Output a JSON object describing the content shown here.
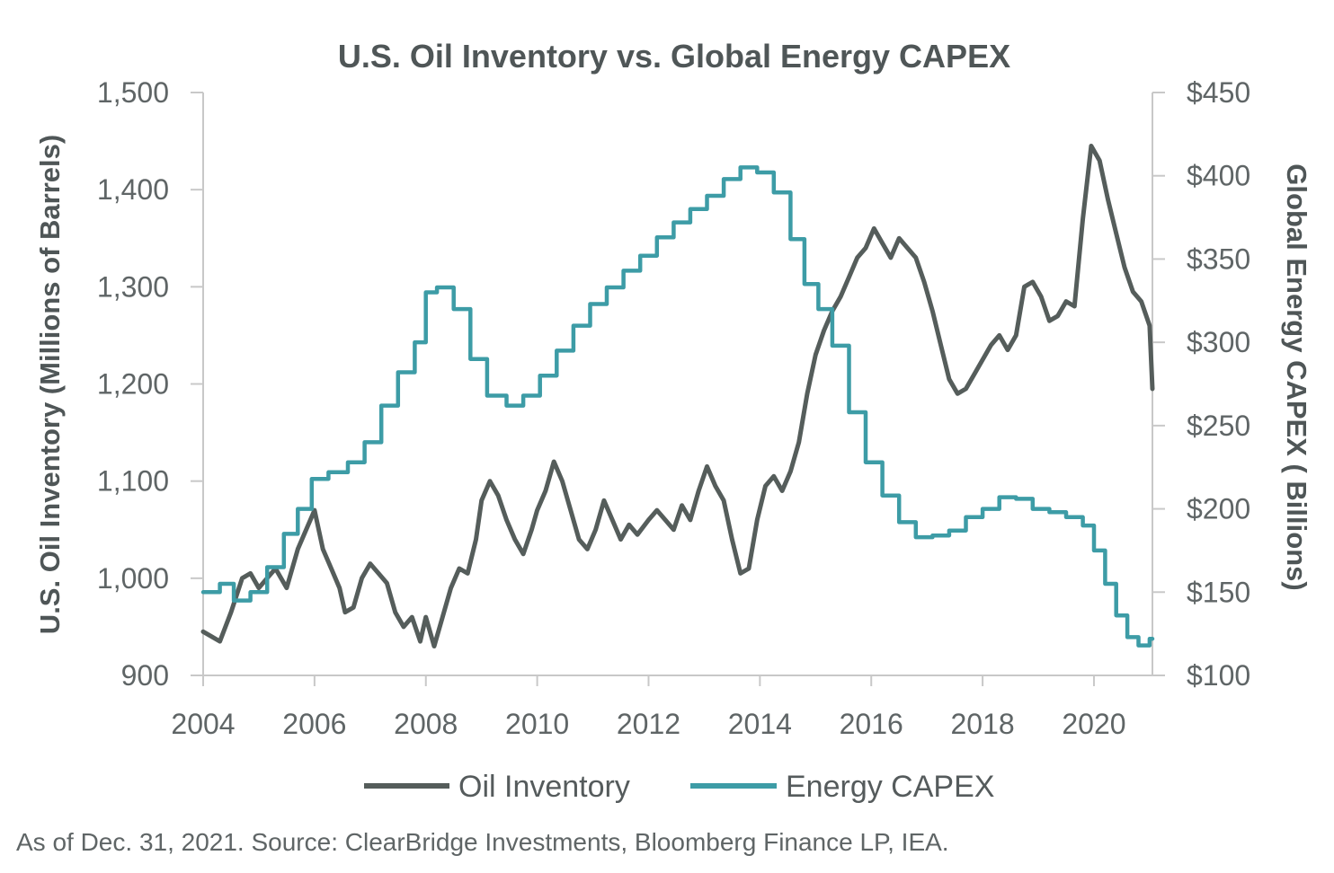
{
  "chart_data": {
    "type": "line",
    "title": "U.S. Oil Inventory vs. Global Energy CAPEX",
    "ylabel_left": "U.S. Oil Inventory (Millions of Barrels)",
    "ylabel_right": "Global Energy CAPEX ( Billions)",
    "xlim": [
      2004,
      2021.05
    ],
    "ylim_left": [
      900,
      1500
    ],
    "ylim_right": [
      100,
      450
    ],
    "x_ticks": [
      "2004",
      "2006",
      "2008",
      "2010",
      "2012",
      "2014",
      "2016",
      "2018",
      "2020"
    ],
    "y_ticks_left": [
      "1,500",
      "1,400",
      "1,300",
      "1,200",
      "1,100",
      "1,000",
      "900"
    ],
    "y_ticks_right": [
      "$450",
      "$400",
      "$350",
      "$300",
      "$250",
      "$200",
      "$150",
      "$100"
    ],
    "legend_position": "bottom",
    "grid": false,
    "colors": {
      "oil": "#555d5b",
      "capex": "#3d9ca6",
      "axis": "#c8c8c8"
    },
    "series": [
      {
        "name": "Oil Inventory",
        "axis": "left",
        "points": [
          [
            2004.0,
            945
          ],
          [
            2004.15,
            940
          ],
          [
            2004.3,
            935
          ],
          [
            2004.5,
            965
          ],
          [
            2004.7,
            1000
          ],
          [
            2004.85,
            1005
          ],
          [
            2005.0,
            990
          ],
          [
            2005.15,
            1000
          ],
          [
            2005.3,
            1010
          ],
          [
            2005.5,
            990
          ],
          [
            2005.7,
            1030
          ],
          [
            2005.85,
            1050
          ],
          [
            2006.0,
            1070
          ],
          [
            2006.15,
            1030
          ],
          [
            2006.3,
            1010
          ],
          [
            2006.45,
            990
          ],
          [
            2006.55,
            965
          ],
          [
            2006.7,
            970
          ],
          [
            2006.85,
            1000
          ],
          [
            2007.0,
            1015
          ],
          [
            2007.15,
            1005
          ],
          [
            2007.3,
            995
          ],
          [
            2007.45,
            965
          ],
          [
            2007.6,
            950
          ],
          [
            2007.75,
            960
          ],
          [
            2007.9,
            935
          ],
          [
            2008.0,
            960
          ],
          [
            2008.15,
            930
          ],
          [
            2008.3,
            960
          ],
          [
            2008.45,
            990
          ],
          [
            2008.6,
            1010
          ],
          [
            2008.75,
            1005
          ],
          [
            2008.9,
            1040
          ],
          [
            2009.0,
            1080
          ],
          [
            2009.15,
            1100
          ],
          [
            2009.3,
            1085
          ],
          [
            2009.45,
            1060
          ],
          [
            2009.6,
            1040
          ],
          [
            2009.75,
            1025
          ],
          [
            2009.9,
            1050
          ],
          [
            2010.0,
            1070
          ],
          [
            2010.15,
            1090
          ],
          [
            2010.3,
            1120
          ],
          [
            2010.45,
            1100
          ],
          [
            2010.6,
            1070
          ],
          [
            2010.75,
            1040
          ],
          [
            2010.9,
            1030
          ],
          [
            2011.05,
            1050
          ],
          [
            2011.2,
            1080
          ],
          [
            2011.35,
            1060
          ],
          [
            2011.5,
            1040
          ],
          [
            2011.65,
            1055
          ],
          [
            2011.8,
            1045
          ],
          [
            2012.0,
            1060
          ],
          [
            2012.15,
            1070
          ],
          [
            2012.3,
            1060
          ],
          [
            2012.45,
            1050
          ],
          [
            2012.6,
            1075
          ],
          [
            2012.75,
            1060
          ],
          [
            2012.9,
            1090
          ],
          [
            2013.05,
            1115
          ],
          [
            2013.2,
            1095
          ],
          [
            2013.35,
            1080
          ],
          [
            2013.5,
            1040
          ],
          [
            2013.65,
            1005
          ],
          [
            2013.8,
            1010
          ],
          [
            2013.95,
            1060
          ],
          [
            2014.1,
            1095
          ],
          [
            2014.25,
            1105
          ],
          [
            2014.4,
            1090
          ],
          [
            2014.55,
            1110
          ],
          [
            2014.7,
            1140
          ],
          [
            2014.85,
            1190
          ],
          [
            2015.0,
            1230
          ],
          [
            2015.15,
            1255
          ],
          [
            2015.3,
            1275
          ],
          [
            2015.45,
            1290
          ],
          [
            2015.6,
            1310
          ],
          [
            2015.75,
            1330
          ],
          [
            2015.9,
            1340
          ],
          [
            2016.05,
            1360
          ],
          [
            2016.2,
            1345
          ],
          [
            2016.35,
            1330
          ],
          [
            2016.5,
            1350
          ],
          [
            2016.65,
            1340
          ],
          [
            2016.8,
            1330
          ],
          [
            2016.95,
            1305
          ],
          [
            2017.1,
            1275
          ],
          [
            2017.25,
            1240
          ],
          [
            2017.4,
            1205
          ],
          [
            2017.55,
            1190
          ],
          [
            2017.7,
            1195
          ],
          [
            2017.85,
            1210
          ],
          [
            2018.0,
            1225
          ],
          [
            2018.15,
            1240
          ],
          [
            2018.3,
            1250
          ],
          [
            2018.45,
            1235
          ],
          [
            2018.6,
            1250
          ],
          [
            2018.75,
            1300
          ],
          [
            2018.9,
            1305
          ],
          [
            2019.05,
            1290
          ],
          [
            2019.2,
            1265
          ],
          [
            2019.35,
            1270
          ],
          [
            2019.5,
            1285
          ],
          [
            2019.65,
            1280
          ],
          [
            2019.8,
            1370
          ],
          [
            2019.95,
            1445
          ],
          [
            2020.1,
            1430
          ],
          [
            2020.25,
            1390
          ],
          [
            2020.4,
            1355
          ],
          [
            2020.55,
            1320
          ],
          [
            2020.7,
            1295
          ],
          [
            2020.85,
            1285
          ],
          [
            2021.0,
            1260
          ],
          [
            2021.05,
            1195
          ]
        ]
      },
      {
        "name": "Energy CAPEX",
        "axis": "right",
        "points": [
          [
            2004.0,
            150
          ],
          [
            2004.3,
            155
          ],
          [
            2004.55,
            145
          ],
          [
            2004.85,
            150
          ],
          [
            2005.15,
            165
          ],
          [
            2005.45,
            185
          ],
          [
            2005.7,
            200
          ],
          [
            2005.95,
            218
          ],
          [
            2006.25,
            222
          ],
          [
            2006.6,
            228
          ],
          [
            2006.9,
            240
          ],
          [
            2007.2,
            262
          ],
          [
            2007.5,
            282
          ],
          [
            2007.8,
            300
          ],
          [
            2008.0,
            330
          ],
          [
            2008.2,
            333
          ],
          [
            2008.5,
            320
          ],
          [
            2008.8,
            290
          ],
          [
            2009.1,
            268
          ],
          [
            2009.45,
            262
          ],
          [
            2009.75,
            268
          ],
          [
            2010.05,
            280
          ],
          [
            2010.35,
            295
          ],
          [
            2010.65,
            310
          ],
          [
            2010.95,
            323
          ],
          [
            2011.25,
            333
          ],
          [
            2011.55,
            343
          ],
          [
            2011.85,
            352
          ],
          [
            2012.15,
            363
          ],
          [
            2012.45,
            372
          ],
          [
            2012.75,
            380
          ],
          [
            2013.05,
            388
          ],
          [
            2013.35,
            398
          ],
          [
            2013.65,
            405
          ],
          [
            2013.95,
            402
          ],
          [
            2014.25,
            390
          ],
          [
            2014.55,
            362
          ],
          [
            2014.8,
            335
          ],
          [
            2015.05,
            320
          ],
          [
            2015.3,
            298
          ],
          [
            2015.6,
            258
          ],
          [
            2015.9,
            228
          ],
          [
            2016.2,
            208
          ],
          [
            2016.5,
            192
          ],
          [
            2016.8,
            183
          ],
          [
            2017.1,
            184
          ],
          [
            2017.4,
            187
          ],
          [
            2017.7,
            195
          ],
          [
            2018.0,
            200
          ],
          [
            2018.3,
            207
          ],
          [
            2018.6,
            206
          ],
          [
            2018.9,
            200
          ],
          [
            2019.2,
            198
          ],
          [
            2019.5,
            195
          ],
          [
            2019.8,
            190
          ],
          [
            2020.0,
            175
          ],
          [
            2020.2,
            155
          ],
          [
            2020.4,
            136
          ],
          [
            2020.6,
            123
          ],
          [
            2020.8,
            118
          ],
          [
            2021.0,
            122
          ]
        ]
      }
    ],
    "source": "As of Dec. 31, 2021. Source: ClearBridge Investments, Bloomberg Finance LP, IEA."
  }
}
